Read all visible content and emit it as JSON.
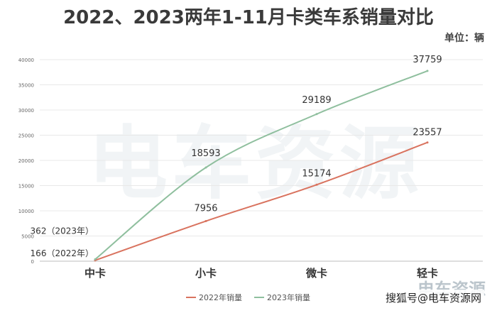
{
  "chart_data": {
    "type": "line",
    "title": "2022、2023两年1-11月卡类车系销量对比",
    "unit_label": "单位：辆",
    "categories": [
      "中卡",
      "小卡",
      "微卡",
      "轻卡"
    ],
    "y_ticks": [
      "0",
      "5000",
      "10000",
      "15000",
      "20000",
      "25000",
      "30000",
      "35000",
      "40000"
    ],
    "ylim": [
      0,
      40000
    ],
    "grid": true,
    "legend_position": "bottom",
    "series": [
      {
        "name": "2022年销量",
        "values": [
          166,
          7956,
          15174,
          23557
        ],
        "color": "#d9735f",
        "labels": [
          "166（2022年）",
          "7956",
          "15174",
          "23557"
        ]
      },
      {
        "name": "2023年销量",
        "values": [
          362,
          18593,
          29189,
          37759
        ],
        "color": "#8fbf9e",
        "labels": [
          "362（2023年）",
          "18593",
          "29189",
          "37759"
        ]
      }
    ]
  },
  "watermark": {
    "text": "电车资源"
  },
  "footer": {
    "text": "搜狐号@电车资源网"
  }
}
